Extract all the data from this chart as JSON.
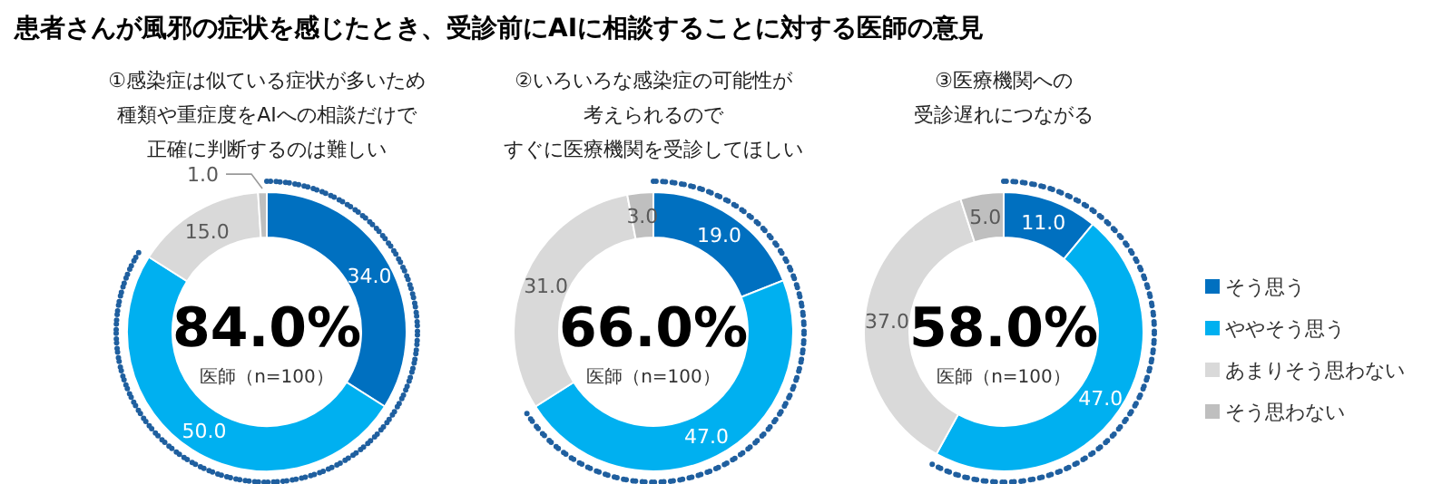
{
  "chart_data": [
    {
      "type": "donut",
      "title": "患者さんが風邪の症状を感じたとき、受診前にAIに相談することに対する医師の意見",
      "subtitle": "①感染症は似ている症状が多いため種類や重症度をAIへの相談だけで正確に判断するのは難しい",
      "values": [
        34,
        50,
        15,
        1
      ],
      "colors": [
        "#0070c0",
        "#00b0f0",
        "#d9d9d9",
        "#bfbfbf"
      ],
      "value_labels": [
        "34.0",
        "50.0",
        "15.0",
        "1.0"
      ],
      "annotations": [
        "84.0%",
        "医師（n=100）"
      ],
      "legend": false
    },
    {
      "type": "donut",
      "subtitle": "②いろいろな感染症の可能性が考えられるのですぐに医療機関を受診してほしい",
      "values": [
        19,
        47,
        31,
        3
      ],
      "colors": [
        "#0070c0",
        "#00b0f0",
        "#d9d9d9",
        "#bfbfbf"
      ],
      "value_labels": [
        "19.0",
        "47.0",
        "31.0",
        "3.0"
      ],
      "annotations": [
        "66.0%",
        "医師（n=100）"
      ],
      "legend": false
    },
    {
      "type": "donut",
      "subtitle": "③医療機関への受診遅れにつながる",
      "categories": [
        "そう思う",
        "ややそう思う",
        "あまりそう思わない",
        "そう思わない"
      ],
      "values": [
        11,
        47,
        37,
        5
      ],
      "colors": [
        "#0070c0",
        "#00b0f0",
        "#d9d9d9",
        "#bfbfbf"
      ],
      "value_labels": [
        "11.0",
        "47.0",
        "37.0",
        "5.0"
      ],
      "annotations": [
        "58.0%",
        "医師（n=100）"
      ],
      "legend": "right"
    }
  ]
}
